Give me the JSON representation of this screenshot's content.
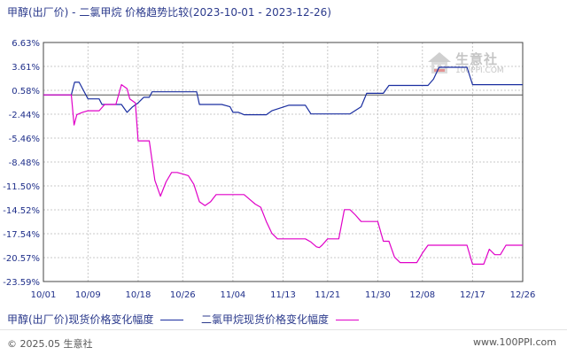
{
  "title": "甲醇(出厂价) - 二氯甲烷 价格趋势比较(2023-10-01 - 2023-12-26)",
  "watermark": {
    "text": "生意社",
    "url": "100PPI.COM"
  },
  "footer": {
    "copyright": "© 2025.05 生意社",
    "site": "www.100PPI.com"
  },
  "colors": {
    "series1": "#1a2ea0",
    "series2": "#e000c8",
    "grid": "#c8c8c8",
    "zero": "#555555",
    "axis": "#444444"
  },
  "chart_data": {
    "type": "line",
    "ylim": [
      -23.59,
      6.63
    ],
    "y_ticks": [
      "6.63%",
      "3.61%",
      "0.58%",
      "-2.44%",
      "-5.46%",
      "-8.48%",
      "-11.50%",
      "-14.52%",
      "-17.54%",
      "-20.57%",
      "-23.59%"
    ],
    "y_tick_values": [
      6.63,
      3.61,
      0.58,
      -2.44,
      -5.46,
      -8.48,
      -11.5,
      -14.52,
      -17.54,
      -20.57,
      -23.59
    ],
    "x_ticks": [
      "10/01",
      "10/09",
      "10/18",
      "10/26",
      "11/04",
      "11/13",
      "11/21",
      "11/30",
      "12/08",
      "12/17",
      "12/26"
    ],
    "x_tick_days": [
      0,
      8,
      17,
      25,
      34,
      43,
      51,
      60,
      68,
      77,
      86
    ],
    "xlim": [
      0,
      86
    ],
    "series": [
      {
        "name": "甲醇(出厂价)现货价格变化幅度",
        "points": [
          [
            0,
            0
          ],
          [
            5,
            0
          ],
          [
            5.6,
            1.6
          ],
          [
            6.4,
            1.6
          ],
          [
            8,
            -0.5
          ],
          [
            10,
            -0.5
          ],
          [
            10.5,
            -1.2
          ],
          [
            12.5,
            -1.2
          ],
          [
            14,
            -1.2
          ],
          [
            15,
            -2.2
          ],
          [
            16,
            -1.5
          ],
          [
            17,
            -1.0
          ],
          [
            18,
            -0.3
          ],
          [
            19,
            -0.3
          ],
          [
            19.5,
            0.4
          ],
          [
            26,
            0.4
          ],
          [
            27.5,
            0.4
          ],
          [
            28,
            -1.2
          ],
          [
            32,
            -1.2
          ],
          [
            33.5,
            -1.5
          ],
          [
            34,
            -2.2
          ],
          [
            35,
            -2.2
          ],
          [
            36,
            -2.5
          ],
          [
            39,
            -2.5
          ],
          [
            40,
            -2.5
          ],
          [
            41,
            -2.0
          ],
          [
            44,
            -1.3
          ],
          [
            47,
            -1.3
          ],
          [
            48,
            -2.4
          ],
          [
            55,
            -2.4
          ],
          [
            57,
            -1.5
          ],
          [
            58,
            0.2
          ],
          [
            61,
            0.2
          ],
          [
            62,
            1.2
          ],
          [
            69,
            1.2
          ],
          [
            70,
            2.0
          ],
          [
            71,
            3.5
          ],
          [
            76,
            3.5
          ],
          [
            77,
            1.3
          ],
          [
            86,
            1.3
          ]
        ]
      },
      {
        "name": "二氯甲烷现货价格变化幅度",
        "points": [
          [
            0,
            0
          ],
          [
            5,
            0
          ],
          [
            5.5,
            -3.8
          ],
          [
            6,
            -2.5
          ],
          [
            7,
            -2.2
          ],
          [
            8,
            -2.0
          ],
          [
            10,
            -2.0
          ],
          [
            11,
            -1.2
          ],
          [
            13,
            -1.2
          ],
          [
            14,
            1.3
          ],
          [
            15,
            0.8
          ],
          [
            15.5,
            -0.5
          ],
          [
            16.5,
            -1.0
          ],
          [
            17,
            -5.8
          ],
          [
            19,
            -5.8
          ],
          [
            20,
            -10.8
          ],
          [
            21,
            -12.8
          ],
          [
            22,
            -11.0
          ],
          [
            23,
            -9.8
          ],
          [
            24,
            -9.8
          ],
          [
            25,
            -10.0
          ],
          [
            26,
            -10.2
          ],
          [
            27,
            -11.3
          ],
          [
            28,
            -13.5
          ],
          [
            29,
            -14.0
          ],
          [
            30,
            -13.5
          ],
          [
            31,
            -12.6
          ],
          [
            35,
            -12.6
          ],
          [
            36,
            -12.6
          ],
          [
            37,
            -13.2
          ],
          [
            38,
            -13.8
          ],
          [
            39,
            -14.2
          ],
          [
            40,
            -16.0
          ],
          [
            41,
            -17.5
          ],
          [
            42,
            -18.2
          ],
          [
            47,
            -18.2
          ],
          [
            48,
            -18.6
          ],
          [
            49,
            -19.2
          ],
          [
            49.5,
            -19.3
          ],
          [
            50,
            -19.0
          ],
          [
            51,
            -18.2
          ],
          [
            53,
            -18.2
          ],
          [
            54,
            -14.5
          ],
          [
            55,
            -14.5
          ],
          [
            56,
            -15.2
          ],
          [
            57,
            -16.0
          ],
          [
            60,
            -16.0
          ],
          [
            61,
            -18.5
          ],
          [
            62,
            -18.5
          ],
          [
            63,
            -20.5
          ],
          [
            64,
            -21.2
          ],
          [
            67,
            -21.2
          ],
          [
            68,
            -20.0
          ],
          [
            69,
            -19.0
          ],
          [
            76,
            -19.0
          ],
          [
            77,
            -21.4
          ],
          [
            79,
            -21.4
          ],
          [
            80,
            -19.5
          ],
          [
            81,
            -20.2
          ],
          [
            82,
            -20.2
          ],
          [
            83,
            -19.0
          ],
          [
            86,
            -19.0
          ]
        ]
      }
    ],
    "legend": "bottom-left",
    "grid": true
  }
}
